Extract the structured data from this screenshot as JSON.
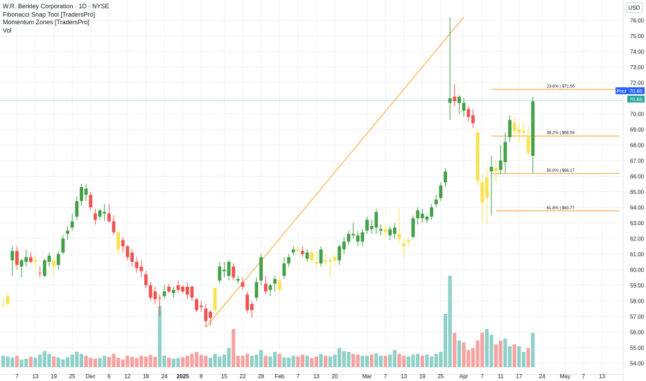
{
  "legend": {
    "symbol_line": "W.R. Berkley Corporation · 1D · NYSE",
    "indicator_1": "Fibonacci Snap Tool [TradersPro]",
    "indicator_2": "Momentum Zones [TradersPro]",
    "indicator_3": "Vol"
  },
  "currency": "USD",
  "badges": {
    "post_label": "Post",
    "post_price": "70.85",
    "last_price": "70.85"
  },
  "colors": {
    "up": "#43a047",
    "down": "#ef5350",
    "neutral": "#fbe14a",
    "fib": "#f7a124",
    "vol_up": "#8fd0c8",
    "vol_down": "#f5a3a1",
    "badge_blue": "#2962ff"
  },
  "chart_data": {
    "type": "candlestick",
    "y_axis": {
      "ylim": [
        53.3,
        76.9
      ],
      "ticks": [
        "54.00",
        "55.00",
        "56.00",
        "57.00",
        "58.00",
        "59.00",
        "60.00",
        "61.00",
        "62.00",
        "63.00",
        "64.00",
        "65.00",
        "66.00",
        "67.00",
        "68.00",
        "69.00",
        "70.00",
        "71.00",
        "72.00",
        "73.00",
        "74.00",
        "75.00",
        "76.00"
      ]
    },
    "x_axis": {
      "ticks": [
        {
          "label": "7",
          "i": 3
        },
        {
          "label": "13",
          "i": 7
        },
        {
          "label": "19",
          "i": 11
        },
        {
          "label": "25",
          "i": 15
        },
        {
          "label": "Dec",
          "i": 19
        },
        {
          "label": "6",
          "i": 23
        },
        {
          "label": "12",
          "i": 27
        },
        {
          "label": "18",
          "i": 31
        },
        {
          "label": "24",
          "i": 35
        },
        {
          "label": "2025",
          "i": 39
        },
        {
          "label": "8",
          "i": 43
        },
        {
          "label": "15",
          "i": 48
        },
        {
          "label": "22",
          "i": 52
        },
        {
          "label": "28",
          "i": 56
        },
        {
          "label": "Feb",
          "i": 60
        },
        {
          "label": "7",
          "i": 64
        },
        {
          "label": "13",
          "i": 68
        },
        {
          "label": "20",
          "i": 72
        },
        {
          "label": "Mar",
          "i": 79
        },
        {
          "label": "7",
          "i": 83
        },
        {
          "label": "13",
          "i": 87
        },
        {
          "label": "19",
          "i": 91
        },
        {
          "label": "25",
          "i": 95
        },
        {
          "label": "Apr",
          "i": 100
        },
        {
          "label": "7",
          "i": 104
        },
        {
          "label": "11",
          "i": 108
        },
        {
          "label": "17",
          "i": 112
        },
        {
          "label": "24",
          "i": 117
        },
        {
          "label": "May",
          "i": 122
        },
        {
          "label": "7",
          "i": 126
        },
        {
          "label": "13",
          "i": 130
        }
      ]
    },
    "series": [
      {
        "o": 57.8,
        "h": 58.1,
        "l": 57.5,
        "c": 57.8,
        "v": 0.3,
        "col": "n"
      },
      {
        "o": 57.8,
        "h": 58.5,
        "l": 57.6,
        "c": 58.3,
        "v": 0.28,
        "col": "n"
      },
      {
        "o": 60.6,
        "h": 61.5,
        "l": 59.6,
        "c": 61.2,
        "v": 0.25,
        "col": "u"
      },
      {
        "o": 61.2,
        "h": 61.5,
        "l": 60.0,
        "c": 60.3,
        "v": 0.3,
        "col": "d"
      },
      {
        "o": 60.2,
        "h": 60.7,
        "l": 59.5,
        "c": 60.6,
        "v": 0.2,
        "col": "u"
      },
      {
        "o": 60.5,
        "h": 61.3,
        "l": 60.2,
        "c": 60.8,
        "v": 0.22,
        "col": "u"
      },
      {
        "o": 60.8,
        "h": 61.1,
        "l": 60.4,
        "c": 60.5,
        "v": 0.27,
        "col": "d"
      },
      {
        "o": 60.5,
        "h": 60.9,
        "l": 60.1,
        "c": 60.6,
        "v": 0.25,
        "col": "n"
      },
      {
        "o": 59.8,
        "h": 60.2,
        "l": 59.5,
        "c": 59.8,
        "v": 0.33,
        "col": "d"
      },
      {
        "o": 59.6,
        "h": 60.7,
        "l": 59.5,
        "c": 60.6,
        "v": 0.42,
        "col": "u"
      },
      {
        "o": 60.5,
        "h": 61.1,
        "l": 60.2,
        "c": 60.9,
        "v": 0.35,
        "col": "u"
      },
      {
        "o": 60.6,
        "h": 60.8,
        "l": 59.6,
        "c": 60.2,
        "v": 0.28,
        "col": "n"
      },
      {
        "o": 60.3,
        "h": 61.2,
        "l": 60.0,
        "c": 61.0,
        "v": 0.25,
        "col": "u"
      },
      {
        "o": 61.1,
        "h": 62.2,
        "l": 61.0,
        "c": 62.0,
        "v": 0.2,
        "col": "u"
      },
      {
        "o": 62.3,
        "h": 62.8,
        "l": 61.9,
        "c": 62.5,
        "v": 0.26,
        "col": "u"
      },
      {
        "o": 62.7,
        "h": 63.6,
        "l": 62.5,
        "c": 63.1,
        "v": 0.33,
        "col": "u"
      },
      {
        "o": 63.4,
        "h": 64.7,
        "l": 63.2,
        "c": 64.4,
        "v": 0.4,
        "col": "u"
      },
      {
        "o": 64.4,
        "h": 65.5,
        "l": 64.1,
        "c": 65.3,
        "v": 0.35,
        "col": "u"
      },
      {
        "o": 65.2,
        "h": 65.5,
        "l": 64.4,
        "c": 64.8,
        "v": 0.3,
        "col": "u"
      },
      {
        "o": 64.8,
        "h": 65.0,
        "l": 63.8,
        "c": 64.0,
        "v": 0.25,
        "col": "d"
      },
      {
        "o": 63.6,
        "h": 63.9,
        "l": 62.9,
        "c": 63.2,
        "v": 0.22,
        "col": "d"
      },
      {
        "o": 63.4,
        "h": 63.9,
        "l": 63.2,
        "c": 63.8,
        "v": 0.24,
        "col": "u"
      },
      {
        "o": 63.6,
        "h": 64.2,
        "l": 63.1,
        "c": 63.7,
        "v": 0.3,
        "col": "u"
      },
      {
        "o": 63.6,
        "h": 64.2,
        "l": 63.0,
        "c": 63.1,
        "v": 0.27,
        "col": "d"
      },
      {
        "o": 63.1,
        "h": 63.5,
        "l": 62.2,
        "c": 62.4,
        "v": 0.35,
        "col": "d"
      },
      {
        "o": 62.4,
        "h": 62.5,
        "l": 61.0,
        "c": 61.3,
        "v": 0.25,
        "col": "n"
      },
      {
        "o": 61.9,
        "h": 62.1,
        "l": 61.1,
        "c": 61.5,
        "v": 0.2,
        "col": "d"
      },
      {
        "o": 61.5,
        "h": 61.6,
        "l": 60.6,
        "c": 60.8,
        "v": 0.3,
        "col": "d"
      },
      {
        "o": 61.1,
        "h": 61.3,
        "l": 60.2,
        "c": 60.5,
        "v": 0.27,
        "col": "d"
      },
      {
        "o": 60.5,
        "h": 60.8,
        "l": 59.8,
        "c": 60.1,
        "v": 0.24,
        "col": "d"
      },
      {
        "o": 60.2,
        "h": 60.6,
        "l": 59.5,
        "c": 59.9,
        "v": 0.3,
        "col": "d"
      },
      {
        "o": 59.7,
        "h": 59.9,
        "l": 58.8,
        "c": 59.0,
        "v": 0.28,
        "col": "d"
      },
      {
        "o": 59.0,
        "h": 59.2,
        "l": 58.0,
        "c": 58.2,
        "v": 0.32,
        "col": "d"
      },
      {
        "o": 58.6,
        "h": 58.9,
        "l": 57.8,
        "c": 58.1,
        "v": 0.27,
        "col": "d"
      },
      {
        "o": 58.2,
        "h": 58.4,
        "l": 57.0,
        "c": 58.2,
        "v": 1.6,
        "col": "d"
      },
      {
        "o": 58.3,
        "h": 59.0,
        "l": 58.1,
        "c": 58.6,
        "v": 0.3,
        "col": "u"
      },
      {
        "o": 58.9,
        "h": 59.1,
        "l": 58.5,
        "c": 58.6,
        "v": 0.25,
        "col": "d"
      },
      {
        "o": 58.5,
        "h": 58.9,
        "l": 58.2,
        "c": 58.7,
        "v": 0.22,
        "col": "u"
      },
      {
        "o": 58.7,
        "h": 59.3,
        "l": 58.5,
        "c": 59.0,
        "v": 0.24,
        "col": "d"
      },
      {
        "o": 58.9,
        "h": 59.0,
        "l": 58.5,
        "c": 58.6,
        "v": 0.26,
        "col": "d"
      },
      {
        "o": 58.9,
        "h": 59.2,
        "l": 58.1,
        "c": 58.4,
        "v": 0.3,
        "col": "d"
      },
      {
        "o": 58.9,
        "h": 59.0,
        "l": 58.0,
        "c": 58.2,
        "v": 0.35,
        "col": "d"
      },
      {
        "o": 58.1,
        "h": 58.2,
        "l": 57.3,
        "c": 57.4,
        "v": 0.4,
        "col": "d"
      },
      {
        "o": 57.7,
        "h": 58.0,
        "l": 57.3,
        "c": 57.6,
        "v": 0.32,
        "col": "d"
      },
      {
        "o": 57.5,
        "h": 57.8,
        "l": 56.3,
        "c": 56.7,
        "v": 0.3,
        "col": "d"
      },
      {
        "o": 56.9,
        "h": 57.4,
        "l": 56.4,
        "c": 57.3,
        "v": 0.25,
        "col": "d"
      },
      {
        "o": 57.4,
        "h": 58.9,
        "l": 57.2,
        "c": 58.8,
        "v": 0.35,
        "col": "n"
      },
      {
        "o": 59.3,
        "h": 60.5,
        "l": 59.1,
        "c": 60.2,
        "v": 0.28,
        "col": "u"
      },
      {
        "o": 59.9,
        "h": 60.5,
        "l": 59.5,
        "c": 60.0,
        "v": 0.33,
        "col": "u"
      },
      {
        "o": 59.6,
        "h": 60.6,
        "l": 59.3,
        "c": 60.5,
        "v": 0.5,
        "col": "u"
      },
      {
        "o": 60.2,
        "h": 60.4,
        "l": 59.3,
        "c": 59.5,
        "v": 1.0,
        "col": "d"
      },
      {
        "o": 59.4,
        "h": 59.6,
        "l": 59.1,
        "c": 59.3,
        "v": 0.3,
        "col": "u"
      },
      {
        "o": 59.2,
        "h": 59.5,
        "l": 58.7,
        "c": 58.9,
        "v": 0.3,
        "col": "d"
      },
      {
        "o": 58.4,
        "h": 58.6,
        "l": 57.2,
        "c": 57.4,
        "v": 0.35,
        "col": "d"
      },
      {
        "o": 57.4,
        "h": 58.0,
        "l": 56.9,
        "c": 57.8,
        "v": 0.3,
        "col": "d"
      },
      {
        "o": 58.2,
        "h": 59.5,
        "l": 58.0,
        "c": 59.2,
        "v": 0.33,
        "col": "u"
      },
      {
        "o": 59.3,
        "h": 61.0,
        "l": 59.0,
        "c": 60.8,
        "v": 0.45,
        "col": "u"
      },
      {
        "o": 59.1,
        "h": 59.6,
        "l": 58.4,
        "c": 58.6,
        "v": 0.3,
        "col": "d"
      },
      {
        "o": 58.7,
        "h": 59.1,
        "l": 58.3,
        "c": 59.0,
        "v": 0.28,
        "col": "u"
      },
      {
        "o": 59.1,
        "h": 59.6,
        "l": 58.6,
        "c": 59.4,
        "v": 0.4,
        "col": "u"
      },
      {
        "o": 59.3,
        "h": 59.6,
        "l": 58.5,
        "c": 58.7,
        "v": 0.35,
        "col": "n"
      },
      {
        "o": 59.6,
        "h": 60.8,
        "l": 59.4,
        "c": 60.4,
        "v": 0.26,
        "col": "u"
      },
      {
        "o": 60.4,
        "h": 61.0,
        "l": 60.2,
        "c": 60.8,
        "v": 0.25,
        "col": "u"
      },
      {
        "o": 61.1,
        "h": 61.5,
        "l": 60.9,
        "c": 61.3,
        "v": 0.3,
        "col": "u"
      },
      {
        "o": 61.3,
        "h": 61.5,
        "l": 61.1,
        "c": 61.2,
        "v": 0.28,
        "col": "n"
      },
      {
        "o": 61.2,
        "h": 61.5,
        "l": 60.8,
        "c": 61.0,
        "v": 0.33,
        "col": "d"
      },
      {
        "o": 60.7,
        "h": 61.3,
        "l": 60.5,
        "c": 61.1,
        "v": 0.3,
        "col": "u"
      },
      {
        "o": 61.1,
        "h": 61.2,
        "l": 60.4,
        "c": 60.6,
        "v": 0.24,
        "col": "n"
      },
      {
        "o": 60.5,
        "h": 61.2,
        "l": 60.2,
        "c": 60.4,
        "v": 0.28,
        "col": "n"
      },
      {
        "o": 60.4,
        "h": 61.5,
        "l": 60.2,
        "c": 61.3,
        "v": 0.35,
        "col": "u"
      },
      {
        "o": 60.6,
        "h": 61.0,
        "l": 60.3,
        "c": 60.5,
        "v": 0.3,
        "col": "n"
      },
      {
        "o": 60.5,
        "h": 60.8,
        "l": 59.5,
        "c": 60.6,
        "v": 0.28,
        "col": "n"
      },
      {
        "o": 60.6,
        "h": 61.0,
        "l": 60.3,
        "c": 60.8,
        "v": 0.33,
        "col": "n"
      },
      {
        "o": 60.6,
        "h": 61.6,
        "l": 60.3,
        "c": 61.5,
        "v": 0.5,
        "col": "u"
      },
      {
        "o": 61.3,
        "h": 62.1,
        "l": 61.0,
        "c": 61.8,
        "v": 0.42,
        "col": "u"
      },
      {
        "o": 61.8,
        "h": 62.5,
        "l": 61.6,
        "c": 62.3,
        "v": 0.4,
        "col": "u"
      },
      {
        "o": 62.3,
        "h": 63.0,
        "l": 62.0,
        "c": 62.2,
        "v": 0.35,
        "col": "u"
      },
      {
        "o": 62.2,
        "h": 62.5,
        "l": 61.5,
        "c": 61.8,
        "v": 0.33,
        "col": "u"
      },
      {
        "o": 61.8,
        "h": 62.6,
        "l": 61.5,
        "c": 62.4,
        "v": 0.3,
        "col": "u"
      },
      {
        "o": 62.5,
        "h": 63.4,
        "l": 62.3,
        "c": 63.2,
        "v": 0.3,
        "col": "u"
      },
      {
        "o": 62.8,
        "h": 63.2,
        "l": 62.3,
        "c": 62.6,
        "v": 0.33,
        "col": "u"
      },
      {
        "o": 62.7,
        "h": 63.9,
        "l": 62.3,
        "c": 63.7,
        "v": 0.36,
        "col": "u"
      },
      {
        "o": 62.5,
        "h": 62.9,
        "l": 62.2,
        "c": 62.6,
        "v": 0.3,
        "col": "u"
      },
      {
        "o": 62.6,
        "h": 62.9,
        "l": 62.1,
        "c": 62.4,
        "v": 0.3,
        "col": "n"
      },
      {
        "o": 62.2,
        "h": 62.8,
        "l": 61.9,
        "c": 62.6,
        "v": 0.33,
        "col": "u"
      },
      {
        "o": 62.3,
        "h": 63.0,
        "l": 62.0,
        "c": 62.7,
        "v": 0.45,
        "col": "u"
      },
      {
        "o": 62.3,
        "h": 63.9,
        "l": 61.7,
        "c": 62.0,
        "v": 0.35,
        "col": "n"
      },
      {
        "o": 61.7,
        "h": 62.0,
        "l": 60.8,
        "c": 61.5,
        "v": 0.3,
        "col": "n"
      },
      {
        "o": 61.8,
        "h": 62.1,
        "l": 61.5,
        "c": 61.9,
        "v": 0.28,
        "col": "n"
      },
      {
        "o": 62.1,
        "h": 63.5,
        "l": 62.0,
        "c": 63.3,
        "v": 0.33,
        "col": "u"
      },
      {
        "o": 63.3,
        "h": 64.0,
        "l": 62.9,
        "c": 63.8,
        "v": 0.35,
        "col": "u"
      },
      {
        "o": 63.6,
        "h": 63.9,
        "l": 63.0,
        "c": 63.3,
        "v": 0.3,
        "col": "u"
      },
      {
        "o": 63.2,
        "h": 63.5,
        "l": 63.0,
        "c": 63.4,
        "v": 0.33,
        "col": "u"
      },
      {
        "o": 63.4,
        "h": 64.2,
        "l": 63.2,
        "c": 64.0,
        "v": 0.28,
        "col": "u"
      },
      {
        "o": 64.2,
        "h": 64.8,
        "l": 64.0,
        "c": 64.5,
        "v": 0.35,
        "col": "u"
      },
      {
        "o": 64.6,
        "h": 65.6,
        "l": 64.4,
        "c": 65.4,
        "v": 0.4,
        "col": "u"
      },
      {
        "o": 65.6,
        "h": 66.5,
        "l": 65.3,
        "c": 66.3,
        "v": 1.4,
        "col": "u"
      },
      {
        "o": 70.7,
        "h": 76.2,
        "l": 69.6,
        "c": 71.0,
        "v": 2.4,
        "col": "u"
      },
      {
        "o": 71.1,
        "h": 71.9,
        "l": 70.5,
        "c": 70.8,
        "v": 0.9,
        "col": "d"
      },
      {
        "o": 70.7,
        "h": 71.2,
        "l": 70.0,
        "c": 71.1,
        "v": 0.7,
        "col": "u"
      },
      {
        "o": 70.7,
        "h": 71.0,
        "l": 69.8,
        "c": 70.2,
        "v": 0.65,
        "col": "u"
      },
      {
        "o": 70.3,
        "h": 70.5,
        "l": 69.5,
        "c": 69.8,
        "v": 0.45,
        "col": "d"
      },
      {
        "o": 69.9,
        "h": 70.3,
        "l": 69.1,
        "c": 69.4,
        "v": 0.5,
        "col": "d"
      },
      {
        "o": 68.8,
        "h": 69.0,
        "l": 65.4,
        "c": 65.7,
        "v": 0.7,
        "col": "n"
      },
      {
        "o": 65.6,
        "h": 66.1,
        "l": 63.0,
        "c": 64.3,
        "v": 0.9,
        "col": "n"
      },
      {
        "o": 64.6,
        "h": 66.5,
        "l": 62.9,
        "c": 65.9,
        "v": 1.0,
        "col": "n"
      },
      {
        "o": 66.3,
        "h": 67.3,
        "l": 63.5,
        "c": 66.6,
        "v": 0.85,
        "col": "u"
      },
      {
        "o": 66.5,
        "h": 67.0,
        "l": 65.6,
        "c": 66.3,
        "v": 0.6,
        "col": "n"
      },
      {
        "o": 67.0,
        "h": 68.0,
        "l": 66.1,
        "c": 66.4,
        "v": 0.7,
        "col": "u"
      },
      {
        "o": 66.9,
        "h": 68.8,
        "l": 66.2,
        "c": 68.2,
        "v": 0.75,
        "col": "u"
      },
      {
        "o": 68.5,
        "h": 69.9,
        "l": 68.2,
        "c": 69.6,
        "v": 0.55,
        "col": "u"
      },
      {
        "o": 69.4,
        "h": 69.8,
        "l": 68.4,
        "c": 68.9,
        "v": 0.6,
        "col": "n"
      },
      {
        "o": 68.8,
        "h": 69.4,
        "l": 68.1,
        "c": 69.0,
        "v": 0.55,
        "col": "n"
      },
      {
        "o": 68.8,
        "h": 69.5,
        "l": 68.4,
        "c": 68.9,
        "v": 0.4,
        "col": "n"
      },
      {
        "o": 68.6,
        "h": 69.2,
        "l": 67.3,
        "c": 67.5,
        "v": 0.5,
        "col": "n"
      },
      {
        "o": 67.3,
        "h": 71.1,
        "l": 66.2,
        "c": 70.8,
        "v": 0.9,
        "col": "u"
      }
    ],
    "annotations": [
      {
        "label": "23.6% | $71.56",
        "price": 71.56
      },
      {
        "label": "38.2% | $68.58",
        "price": 68.58
      },
      {
        "label": "50.0% | $66.17",
        "price": 66.17
      },
      {
        "label": "61.8% | $63.77",
        "price": 63.77
      }
    ]
  }
}
